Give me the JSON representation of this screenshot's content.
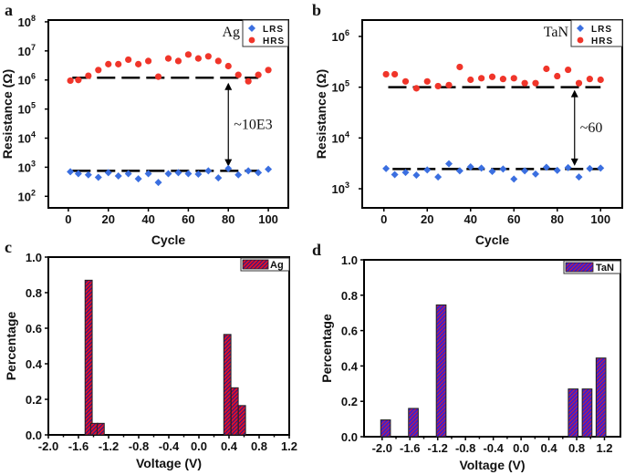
{
  "chart_data": [
    {
      "panel": "a",
      "type": "scatter",
      "xlabel": "Cycle",
      "ylabel": "Resistance (Ω)",
      "yscale": "log",
      "xlim": [
        -10,
        110
      ],
      "ylim": [
        40,
        115000000.0
      ],
      "xticks": [
        0,
        20,
        40,
        60,
        80,
        100
      ],
      "yticks": [
        100,
        1000,
        10000,
        100000,
        1000000,
        10000000,
        100000000
      ],
      "x": [
        1,
        5,
        10,
        15,
        20,
        25,
        30,
        35,
        40,
        45,
        50,
        55,
        60,
        65,
        70,
        75,
        80,
        85,
        90,
        95,
        100
      ],
      "series": [
        {
          "name": "LRS",
          "marker": "diamond",
          "color": "#3b6fe0",
          "values": [
            700,
            600,
            550,
            450,
            650,
            500,
            600,
            400,
            600,
            300,
            600,
            650,
            600,
            580,
            750,
            430,
            900,
            550,
            750,
            650,
            850
          ]
        },
        {
          "name": "HRS",
          "marker": "circle",
          "color": "#f0352a",
          "values": [
            950000,
            1000000,
            1400000,
            2200000,
            3500000,
            3500000,
            5000000,
            3500000,
            4500000,
            1300000,
            5500000,
            4500000,
            7500000,
            5500000,
            6500000,
            4500000,
            3000000,
            1500000,
            900000,
            1500000,
            2200000
          ]
        }
      ],
      "reference_lines": [
        {
          "y": 1200000,
          "x": [
            2,
            95
          ]
        },
        {
          "y": 750,
          "x": [
            2,
            95
          ]
        }
      ],
      "arrow": {
        "x": 80,
        "y": [
          1000000,
          850
        ]
      },
      "annotation": "~10E3",
      "material_label": "Ag",
      "legend_position": "top-right"
    },
    {
      "panel": "b",
      "type": "scatter",
      "xlabel": "Cycle",
      "ylabel": "Resistance (Ω)",
      "yscale": "log",
      "xlim": [
        -10,
        110
      ],
      "ylim": [
        420,
        2100000
      ],
      "xticks": [
        0,
        20,
        40,
        60,
        80,
        100
      ],
      "yticks": [
        1000,
        10000,
        100000,
        1000000
      ],
      "x": [
        1,
        5,
        10,
        15,
        20,
        25,
        30,
        35,
        40,
        45,
        50,
        55,
        60,
        65,
        70,
        75,
        80,
        85,
        90,
        95,
        100
      ],
      "series": [
        {
          "name": "LRS",
          "marker": "diamond",
          "color": "#3b6fe0",
          "values": [
            2500,
            1900,
            2100,
            1850,
            2350,
            1700,
            3100,
            2250,
            2700,
            2550,
            2200,
            2450,
            1550,
            2250,
            1950,
            2650,
            2300,
            2600,
            1700,
            2500,
            2550
          ]
        },
        {
          "name": "HRS",
          "marker": "circle",
          "color": "#f0352a",
          "values": [
            180000,
            180000,
            130000,
            95000,
            130000,
            105000,
            110000,
            250000,
            140000,
            150000,
            160000,
            145000,
            150000,
            120000,
            120000,
            230000,
            165000,
            220000,
            120000,
            145000,
            140000
          ]
        }
      ],
      "reference_lines": [
        {
          "y": 100000,
          "x": [
            2,
            100
          ]
        },
        {
          "y": 2450,
          "x": [
            4,
            100
          ]
        }
      ],
      "arrow": {
        "x": 88,
        "y": [
          100000,
          2500
        ]
      },
      "annotation": "~60",
      "material_label": "TaN",
      "legend_position": "top-right"
    },
    {
      "panel": "c",
      "type": "bar",
      "xlabel": "Voltage (V)",
      "ylabel": "Percentage",
      "xlim": [
        -2.0,
        1.2
      ],
      "ylim": [
        0,
        1.0
      ],
      "xticks": [
        -2.0,
        -1.6,
        -1.2,
        -0.8,
        -0.4,
        0.0,
        0.4,
        0.8,
        1.2
      ],
      "yticks": [
        0.0,
        0.2,
        0.4,
        0.6,
        0.8,
        1.0
      ],
      "series": [
        {
          "name": "Ag",
          "color": "#e0102a",
          "stripe_color": "#1a1a8c",
          "x": [
            -1.465,
            -1.39,
            -1.305,
            0.378,
            0.475,
            0.572
          ],
          "values": [
            0.87,
            0.065,
            0.065,
            0.565,
            0.265,
            0.165
          ],
          "bin_width": 0.095
        }
      ],
      "legend_position": "top-right"
    },
    {
      "panel": "d",
      "type": "bar",
      "xlabel": "Voltage (V)",
      "ylabel": "Percentage",
      "xlim": [
        -2.26,
        1.43
      ],
      "ylim": [
        0,
        1.0
      ],
      "xticks": [
        -2.0,
        -1.6,
        -1.2,
        -0.8,
        -0.4,
        0.0,
        0.4,
        0.8,
        1.2
      ],
      "yticks": [
        0.0,
        0.2,
        0.4,
        0.6,
        0.8,
        1.0
      ],
      "series": [
        {
          "name": "TaN",
          "color": "#3a1fd0",
          "stripe_color": "#d0203a",
          "x": [
            -1.95,
            -1.55,
            -1.15,
            0.75,
            0.95,
            1.15
          ],
          "values": [
            0.095,
            0.16,
            0.745,
            0.27,
            0.27,
            0.445
          ],
          "bin_width": 0.14
        }
      ],
      "legend_position": "top-right"
    }
  ]
}
